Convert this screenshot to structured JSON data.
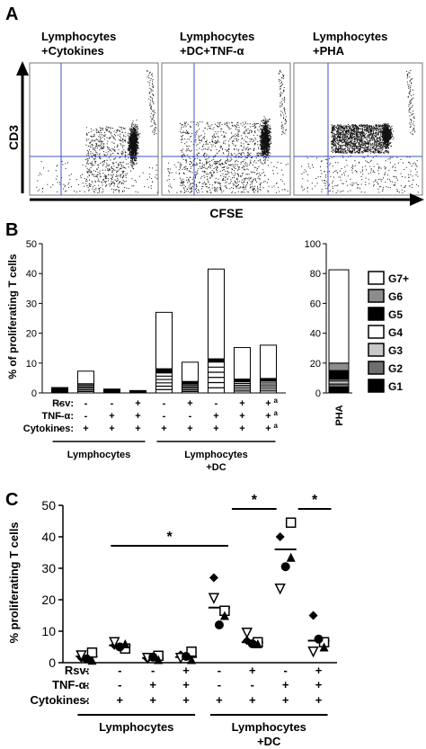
{
  "panel_a": {
    "letter": "A",
    "titles": [
      [
        "Lymphocytes",
        "+Cytokines"
      ],
      [
        "Lymphocytes",
        "+DC+TNF-α"
      ],
      [
        "Lymphocytes",
        "+PHA"
      ]
    ],
    "ylabel": "CD3",
    "xlabel": "CFSE"
  },
  "panel_b": {
    "letter": "B",
    "ylabel": "% of proliferating T cells",
    "ylim": [
      0,
      50
    ],
    "ticks": [
      0,
      10,
      20,
      30,
      40,
      50
    ],
    "bar_totals": [
      1.8,
      7.3,
      1.3,
      0.8,
      27,
      10.3,
      41.5,
      15.2,
      16
    ],
    "g6_layer": [
      0,
      0,
      0,
      0,
      1.5,
      1.0,
      1.2,
      1.0,
      1.0
    ],
    "pha_chart": {
      "ylim": [
        0,
        100
      ],
      "ticks": [
        0,
        20,
        40,
        60,
        80,
        100
      ],
      "segments": [
        {
          "gen": "G1",
          "value": 4
        },
        {
          "gen": "G2",
          "value": 2
        },
        {
          "gen": "G3",
          "value": 2
        },
        {
          "gen": "G4",
          "value": 1
        },
        {
          "gen": "G5",
          "value": 6
        },
        {
          "gen": "G6",
          "value": 5
        },
        {
          "gen": "G7+",
          "value": 62.5
        }
      ],
      "category": "PHA"
    },
    "legend": [
      {
        "label": "G7+",
        "color": "#ffffff"
      },
      {
        "label": "G6",
        "color": "#8c8c8c"
      },
      {
        "label": "G5",
        "color": "#000000"
      },
      {
        "label": "G4",
        "color": "#ffffff"
      },
      {
        "label": "G3",
        "color": "#c8c8c8"
      },
      {
        "label": "G2",
        "color": "#6e6e6e"
      },
      {
        "label": "G1",
        "color": "#000000"
      }
    ],
    "conditions": {
      "rows": [
        "Rsv:",
        "TNF-α:",
        "Cytokines:"
      ],
      "rsv": [
        "-",
        "-",
        "-",
        "+",
        "-",
        "+",
        "-",
        "+",
        "+"
      ],
      "tnf": [
        "-",
        "-",
        "+",
        "+",
        "-",
        "-",
        "+",
        "+",
        "+"
      ],
      "cyt": [
        "-",
        "+",
        "+",
        "+",
        "+",
        "+",
        "+",
        "+",
        "+"
      ],
      "superscript": "a"
    },
    "groups": [
      {
        "label": [
          "Lymphocytes"
        ]
      },
      {
        "label": [
          "Lymphocytes",
          "+DC"
        ]
      }
    ]
  },
  "panel_c": {
    "letter": "C",
    "ylabel": "% proliferating T cells",
    "ylim": [
      0,
      50
    ],
    "ticks": [
      0,
      10,
      20,
      30,
      40,
      50
    ],
    "chart_data": {
      "type": "scatter",
      "markers": [
        "square",
        "diamond",
        "triangle-down",
        "triangle-up",
        "circle"
      ],
      "groups": [
        {
          "mean": 2,
          "values": [
            3.2,
            1.5,
            2.3,
            0.8,
            1.2
          ]
        },
        {
          "mean": 5.5,
          "values": [
            4.5,
            5.5,
            6.5,
            6.0,
            5.0
          ]
        },
        {
          "mean": 1.5,
          "values": [
            2.2,
            1.2,
            1.5,
            1.0,
            1.8
          ]
        },
        {
          "mean": 1.8,
          "values": [
            3.5,
            2.5,
            1.5,
            1.0,
            2.0
          ]
        },
        {
          "mean": 17.5,
          "values": [
            16.5,
            27.0,
            20.5,
            15.0,
            12.0
          ]
        },
        {
          "mean": 6.5,
          "values": [
            6.5,
            7.0,
            9.5,
            6.0,
            6.0
          ]
        },
        {
          "mean": 36,
          "values": [
            44.5,
            40.0,
            23.5,
            33.5,
            30.5
          ]
        },
        {
          "mean": 7,
          "values": [
            6.5,
            15.0,
            3.5,
            5.0,
            7.5
          ]
        }
      ]
    },
    "significance": "*",
    "conditions": {
      "rows": [
        "Rsv:",
        "TNF-α:",
        "Cytokines:"
      ],
      "rsv": [
        "-",
        "-",
        "-",
        "+",
        "-",
        "+",
        "-",
        "+"
      ],
      "tnf": [
        "-",
        "-",
        "+",
        "+",
        "-",
        "-",
        "+",
        "+"
      ],
      "cyt": [
        "-",
        "+",
        "+",
        "+",
        "+",
        "+",
        "+",
        "+"
      ]
    },
    "groups": [
      {
        "label": [
          "Lymphocytes"
        ]
      },
      {
        "label": [
          "Lymphocytes",
          "+DC"
        ]
      }
    ]
  }
}
